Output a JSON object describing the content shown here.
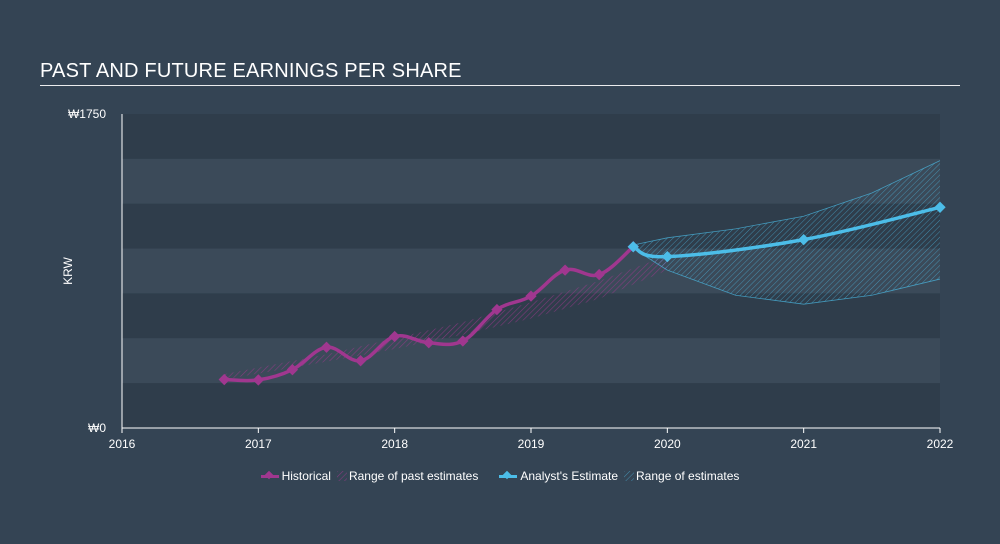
{
  "title": "PAST AND FUTURE EARNINGS PER SHARE",
  "colors": {
    "background": "#344454",
    "historical": "#a0378f",
    "estimate": "#4cbde8",
    "band_light": "#3b4a59",
    "band_dark": "#2f3d4b"
  },
  "legend": {
    "historical": "Historical",
    "past_range": "Range of past estimates",
    "estimate": "Analyst's Estimate",
    "future_range": "Range of estimates"
  },
  "chart_data": {
    "type": "line",
    "title": "PAST AND FUTURE EARNINGS PER SHARE",
    "ylabel": "KRW",
    "xlabel": "",
    "xlim": [
      2016,
      2022.0
    ],
    "ylim": [
      0,
      1750
    ],
    "y_tick_labels": [
      "₩0",
      "₩1750"
    ],
    "x_ticks": [
      2016,
      2017,
      2018,
      2019,
      2020,
      2021,
      2022
    ],
    "x_tick_labels": [
      "2016",
      "2017",
      "2018",
      "2019",
      "2020",
      "2021",
      "2022"
    ],
    "series": [
      {
        "name": "Historical",
        "x": [
          2016.75,
          2017.0,
          2017.25,
          2017.5,
          2017.75,
          2018.0,
          2018.25,
          2018.5,
          2018.75,
          2019.0,
          2019.25,
          2019.5,
          2019.75
        ],
        "y": [
          270,
          268,
          325,
          450,
          375,
          510,
          475,
          485,
          660,
          735,
          880,
          855,
          1010
        ]
      },
      {
        "name": "Analyst's Estimate",
        "x": [
          2019.75,
          2020.0,
          2021.0,
          2022.0
        ],
        "y": [
          1010,
          955,
          1050,
          1230
        ]
      }
    ],
    "ranges": [
      {
        "name": "Range of past estimates",
        "x": [
          2016.75,
          2017.5,
          2018.0,
          2018.5,
          2019.0,
          2019.5,
          2020.0
        ],
        "upper": [
          300,
          410,
          500,
          590,
          700,
          820,
          960
        ],
        "lower": [
          270,
          370,
          440,
          520,
          610,
          720,
          880
        ]
      },
      {
        "name": "Range of estimates",
        "x": [
          2019.75,
          2020.0,
          2020.5,
          2021.0,
          2021.5,
          2022.0
        ],
        "upper": [
          1020,
          1060,
          1110,
          1180,
          1310,
          1490
        ],
        "lower": [
          1000,
          880,
          740,
          690,
          740,
          830
        ]
      }
    ]
  }
}
